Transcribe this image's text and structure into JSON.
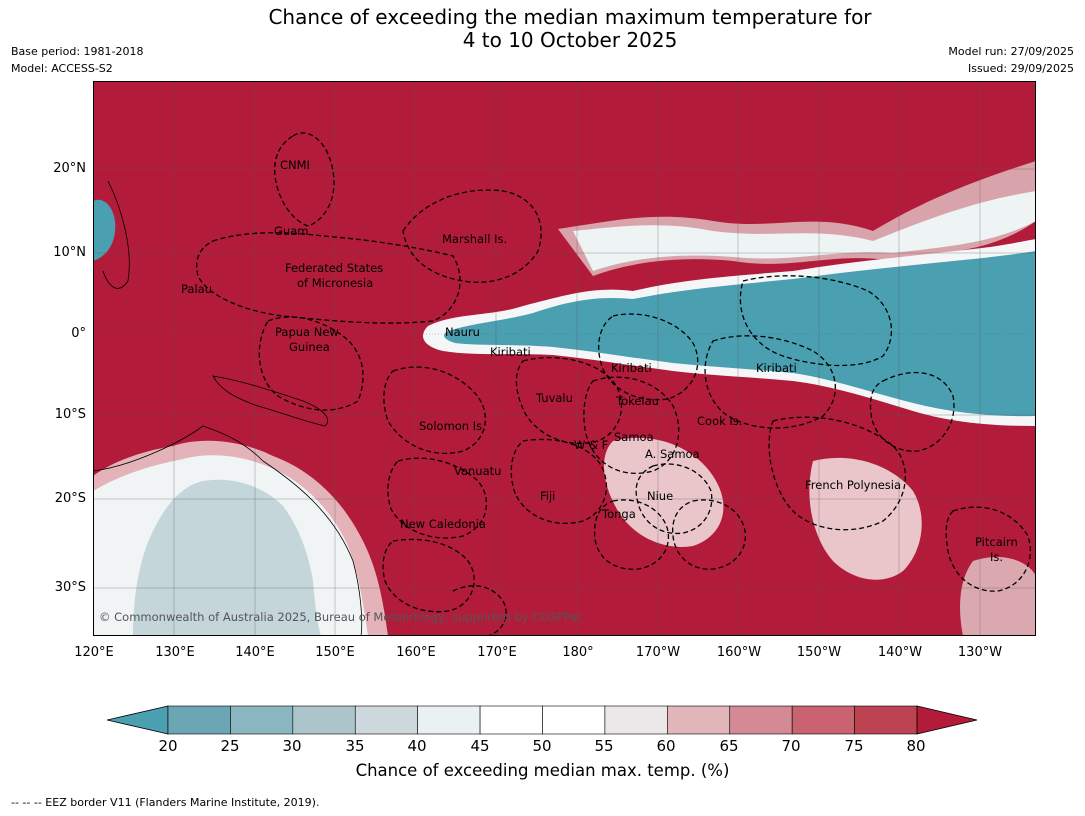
{
  "title": "Chance of exceeding the median maximum temperature for\n4 to 10 October 2025",
  "meta_left": [
    "Base period: 1981-2018",
    "Model: ACCESS-S2"
  ],
  "meta_right": [
    "Model run: 27/09/2025",
    "Issued: 29/09/2025"
  ],
  "lat_labels": [
    "20°N",
    "10°N",
    "0°",
    "10°S",
    "20°S",
    "30°S"
  ],
  "lon_labels": [
    "120°E",
    "130°E",
    "140°E",
    "150°E",
    "160°E",
    "170°E",
    "180°",
    "170°W",
    "160°W",
    "150°W",
    "140°W",
    "130°W"
  ],
  "regions": [
    {
      "label": "CNMI"
    },
    {
      "label": "Guam"
    },
    {
      "label": "Marshall Is."
    },
    {
      "label": "Federated States"
    },
    {
      "label": "of Micronesia"
    },
    {
      "label": "Palau"
    },
    {
      "label": "Nauru"
    },
    {
      "label": "Papua New"
    },
    {
      "label": "Guinea"
    },
    {
      "label": "Kiribati"
    },
    {
      "label": "Kiribati"
    },
    {
      "label": "Kiribati"
    },
    {
      "label": "Tuvalu"
    },
    {
      "label": "Tokelau"
    },
    {
      "label": "Cook Is."
    },
    {
      "label": "Solomon Is."
    },
    {
      "label": "Samoa"
    },
    {
      "label": "W & F"
    },
    {
      "label": "A. Samoa"
    },
    {
      "label": "Vanuatu"
    },
    {
      "label": "Fiji"
    },
    {
      "label": "Niue"
    },
    {
      "label": "French Polynesia"
    },
    {
      "label": "Tonga"
    },
    {
      "label": "New Caledonia"
    },
    {
      "label": "Pitcairn"
    },
    {
      "label": "Is."
    }
  ],
  "copyright": "© Commonwealth of Australia 2025, Bureau of Meteorology, supported by COSPPac",
  "colorbar": {
    "ticks": [
      "20",
      "25",
      "30",
      "35",
      "40",
      "45",
      "50",
      "55",
      "60",
      "65",
      "70",
      "75",
      "80"
    ],
    "low_color": "#4a9fb0",
    "high_color": "#b31b3a",
    "bin_colors": [
      "#6ca6b5",
      "#8ab6c1",
      "#abc5cb",
      "#cdd9dc",
      "#eaf1f3",
      "#ffffff",
      "#ffffff",
      "#ebe8e9",
      "#e0b6bb",
      "#d38a94",
      "#c8636f",
      "#bd4252"
    ],
    "label": "Chance of exceeding median max. temp. (%)"
  },
  "footnote": "--  --  -- EEZ border V11 (Flanders Marine Institute, 2019)."
}
